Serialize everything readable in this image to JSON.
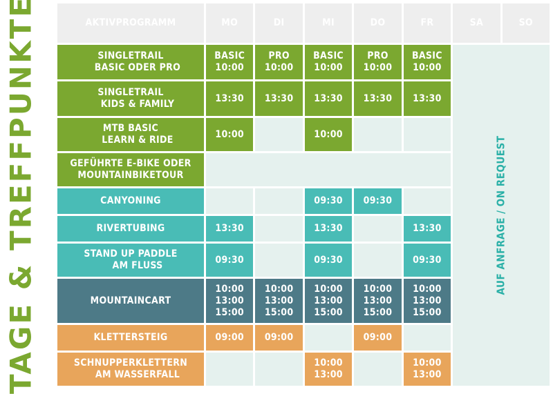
{
  "side_title": "TAGE & TREFFPUNKTE",
  "header": {
    "program": "AKTIVPROGRAMM",
    "days": [
      "MO",
      "DI",
      "MI",
      "DO",
      "FR",
      "SA",
      "SO"
    ]
  },
  "weekend_note": "AUF ANFRAGE / ON REQUEST",
  "rows": [
    {
      "label1": "SINGLETRAIL",
      "label2": "BASIC ODER PRO",
      "cells": [
        [
          "BASIC",
          "10:00"
        ],
        [
          "PRO",
          "10:00"
        ],
        [
          "BASIC",
          "10:00"
        ],
        [
          "PRO",
          "10:00"
        ],
        [
          "BASIC",
          "10:00"
        ]
      ]
    },
    {
      "label1": "SINGLETRAIL",
      "label2": "KIDS & FAMILY",
      "cells": [
        [
          "13:30"
        ],
        [
          "13:30"
        ],
        [
          "13:30"
        ],
        [
          "13:30"
        ],
        [
          "13:30"
        ]
      ]
    },
    {
      "label1": "MTB BASIC",
      "label2": "LEARN & RIDE",
      "cells": [
        [
          "10:00"
        ],
        [],
        [
          "10:00"
        ],
        [],
        []
      ]
    },
    {
      "label1": "GEFÜHRTE E-BIKE ODER",
      "label2": "MOUNTAINBIKETOUR",
      "cells": [
        [],
        [],
        [],
        [],
        []
      ]
    },
    {
      "label1": "CANYONING",
      "label2": "",
      "cells": [
        [],
        [],
        [
          "09:30"
        ],
        [
          "09:30"
        ],
        []
      ]
    },
    {
      "label1": "RIVERTUBING",
      "label2": "",
      "cells": [
        [
          "13:30"
        ],
        [],
        [
          "13:30"
        ],
        [],
        [
          "13:30"
        ]
      ]
    },
    {
      "label1": "STAND UP PADDLE",
      "label2": "AM FLUSS",
      "cells": [
        [
          "09:30"
        ],
        [],
        [
          "09:30"
        ],
        [],
        [
          "09:30"
        ]
      ]
    },
    {
      "label1": "MOUNTAINCART",
      "label2": "",
      "cells": [
        [
          "10:00",
          "13:00",
          "15:00"
        ],
        [
          "10:00",
          "13:00",
          "15:00"
        ],
        [
          "10:00",
          "13:00",
          "15:00"
        ],
        [
          "10:00",
          "13:00",
          "15:00"
        ],
        [
          "10:00",
          "13:00",
          "15:00"
        ]
      ]
    },
    {
      "label1": "KLETTERSTEIG",
      "label2": "",
      "cells": [
        [
          "09:00"
        ],
        [
          "09:00"
        ],
        [],
        [
          "09:00"
        ],
        []
      ]
    },
    {
      "label1": "SCHNUPPERKLETTERN",
      "label2": "AM WASSERFALL",
      "cells": [
        [],
        [],
        [
          "10:00",
          "13:00"
        ],
        [],
        [
          "10:00",
          "13:00"
        ]
      ]
    }
  ],
  "colors": {
    "green": "#7ba830",
    "turquoise": "#49bcb6",
    "slate": "#4d7a87",
    "orange": "#e8a55b",
    "empty": "#e5f1ee",
    "header": "#eeeeee",
    "note": "#2ab0a7"
  }
}
